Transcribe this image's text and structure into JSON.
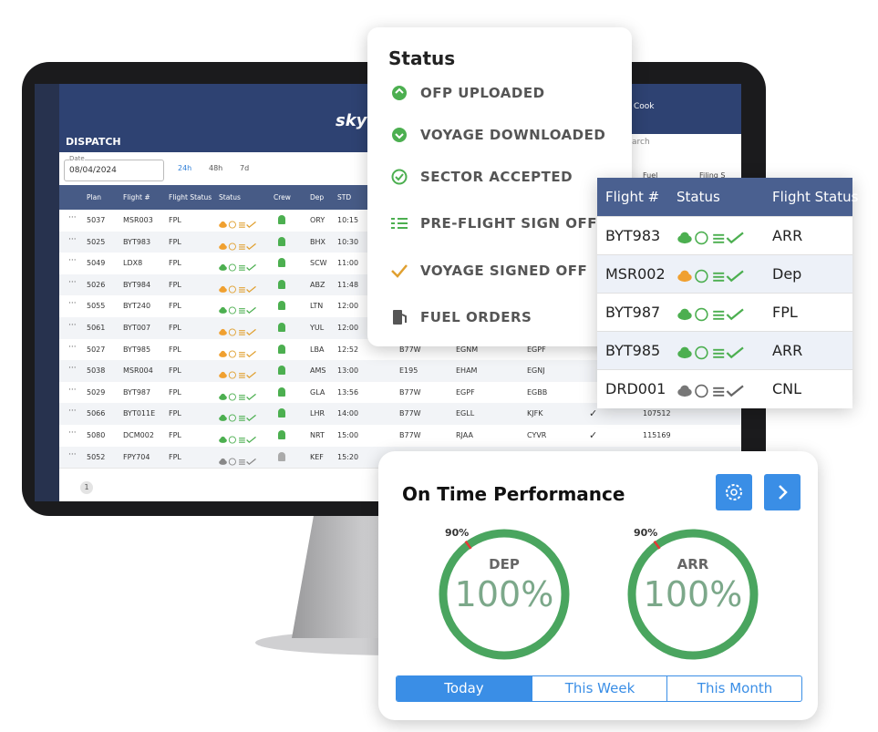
{
  "monitor": {
    "app_title": "DISPATCH",
    "brand": "skyb",
    "user": "Cook",
    "search": "arch",
    "date_label": "Date",
    "date": "08/04/2024",
    "ranges": [
      "24h",
      "48h",
      "7d"
    ],
    "columns": [
      "Plan",
      "Flight #",
      "Flight Status",
      "Status",
      "Crew",
      "Dep",
      "STD"
    ],
    "hidden_columns": [
      "Fuel",
      "Filing S"
    ],
    "rows": [
      {
        "plan": "5037",
        "flight": "MSR003",
        "flight_status": "FPL",
        "dep": "ORY",
        "std": "10:15",
        "cloud": "#f0a030"
      },
      {
        "plan": "5025",
        "flight": "BYT983",
        "flight_status": "FPL",
        "dep": "BHX",
        "std": "10:30",
        "cloud": "#f0a030"
      },
      {
        "plan": "5049",
        "flight": "LDX8",
        "flight_status": "FPL",
        "dep": "SCW",
        "std": "11:00",
        "cloud": "#4caf50"
      },
      {
        "plan": "5026",
        "flight": "BYT984",
        "flight_status": "FPL",
        "dep": "ABZ",
        "std": "11:48",
        "cloud": "#f0a030"
      },
      {
        "plan": "5055",
        "flight": "BYT240",
        "flight_status": "FPL",
        "dep": "LTN",
        "std": "12:00",
        "cloud": "#4caf50"
      },
      {
        "plan": "5061",
        "flight": "BYT007",
        "flight_status": "FPL",
        "dep": "YUL",
        "std": "12:00",
        "cloud": "#f0a030"
      },
      {
        "plan": "5027",
        "flight": "BYT985",
        "flight_status": "FPL",
        "dep": "LBA",
        "std": "12:52",
        "aircraft": "B77W",
        "from": "EGNM",
        "to": "EGPF",
        "cloud": "#f0a030"
      },
      {
        "plan": "5038",
        "flight": "MSR004",
        "flight_status": "FPL",
        "dep": "AMS",
        "std": "13:00",
        "aircraft": "E195",
        "from": "EHAM",
        "to": "EGNJ",
        "cloud": "#f0a030"
      },
      {
        "plan": "5029",
        "flight": "BYT987",
        "flight_status": "FPL",
        "dep": "GLA",
        "std": "13:56",
        "aircraft": "B77W",
        "from": "EGPF",
        "to": "EGBB",
        "cloud": "#4caf50"
      },
      {
        "plan": "5066",
        "flight": "BYT011E",
        "flight_status": "FPL",
        "dep": "LHR",
        "std": "14:00",
        "aircraft": "B77W",
        "from": "EGLL",
        "to": "KJFK",
        "fuel": "107512",
        "cloud": "#4caf50"
      },
      {
        "plan": "5080",
        "flight": "DCM002",
        "flight_status": "FPL",
        "dep": "NRT",
        "std": "15:00",
        "aircraft": "B77W",
        "from": "RJAA",
        "to": "CYVR",
        "fuel": "115169",
        "cloud": "#4caf50"
      },
      {
        "plan": "5052",
        "flight": "FPY704",
        "flight_status": "FPL",
        "dep": "KEF",
        "std": "15:20",
        "cloud": "#888888"
      }
    ],
    "page": "1"
  },
  "status_legend": {
    "title": "Status",
    "items": [
      "OFP UPLOADED",
      "VOYAGE DOWNLOADED",
      "SECTOR ACCEPTED",
      "PRE-FLIGHT SIGN OFF",
      "VOYAGE SIGNED OFF",
      "FUEL ORDERS"
    ]
  },
  "flight_table": {
    "headers": [
      "Flight #",
      "Status",
      "Flight Status"
    ],
    "rows": [
      {
        "flight": "BYT983",
        "status": "ARR",
        "cloud": "#4caf50"
      },
      {
        "flight": "MSR002",
        "status": "Dep",
        "cloud": "#f0a030"
      },
      {
        "flight": "BYT987",
        "status": "FPL",
        "cloud": "#4caf50"
      },
      {
        "flight": "BYT985",
        "status": "ARR",
        "cloud": "#4caf50"
      },
      {
        "flight": "DRD001",
        "status": "CNL",
        "cloud": "#777777"
      }
    ]
  },
  "otp": {
    "title": "On Time Performance",
    "gauges": [
      {
        "label": "DEP",
        "value": "100%",
        "target": "90%"
      },
      {
        "label": "ARR",
        "value": "100%",
        "target": "90%"
      }
    ],
    "tabs": [
      "Today",
      "This Week",
      "This Month"
    ]
  }
}
